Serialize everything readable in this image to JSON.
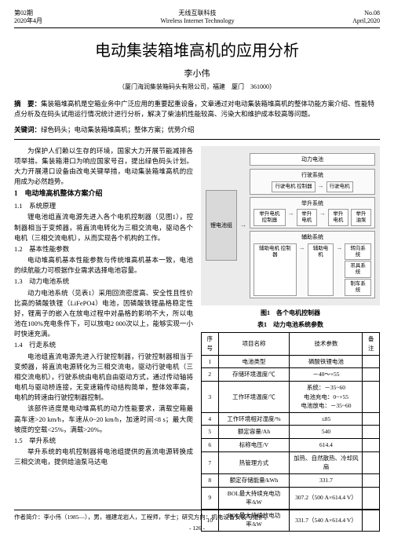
{
  "header": {
    "issue": "第02期",
    "date": "2020年4月",
    "journal": "无线互联科技",
    "journal_en": "Wireless Internet Technology",
    "no": "No.08",
    "date_en": "April,2020"
  },
  "title": "电动集装箱堆高机的应用分析",
  "author": "李小伟",
  "affiliation": "（厦门海润集装箱码头有限公司，福建　厦门　361000）",
  "abstract_label": "摘　要：",
  "abstract": "集装箱堆高机是空箱业务中广泛应用的重要起重设备，文章通过对电动集装箱堆高机的整体功能方案介绍、性能特点分析及在码头试用运行情况统计进行分析，解决了柴油机性能较高、污染大和维护成本较高等问题。",
  "keywords_label": "关键词：",
  "keywords": "绿色码头；电动集装箱堆高机；整体方案；优势介绍",
  "intro": "为保护人们赖以生存的环境，国家大力开展节能减排各项举措。集装箱港口为响应国家号召，提出绿色码头计划。大力开展港口设备由改电关键举措，电动集装箱堆高机的应用成为必然趋势。",
  "s1": "1　电动堆高机整体方案介绍",
  "s11": "1.1　系统原理",
  "p11": "锂电池组直流电源先进入各个电机控制器（见图1），控制器相当于变频器，将直流电转化为三相交流电，驱动各个电机（三相交流电机），从而实现各个机构的工作。",
  "s12": "1.2　基本性能参数",
  "p12": "电动堆高机基本性能参数与传统堆高机基本一致，电池的续航能力可根据作业需求选择电池容量。",
  "s13": "1.3　动力电池系统",
  "p13a": "动力电池系统（见表1）采用回流密度高、安全性且性价比高的磷酸铁锂（LiFePO4）电池，因磷酸铁锂晶格稳定性好，锂离子的嵌入在放电过程中对晶格的影响不大，所以电池在100%充电条件下，可以放电2 000次以上，能够实现一小时快速充满。",
  "s14": "1.4　行走系统",
  "p14": "电池组直流电源先进入行驶控制器，行驶控制器相当于变频器，将直流电源转化为三相交流电，驱动行驶电机（三相交流电机），行驶系统由电机自由驱动方式，通过传动轴将电机与驱动桥连接，无变速箱传动结构简单，整体效率高，电机的转速由行驶控制器控制。",
  "p14b": "该部件适度是电动堆高机的动力性能要求，满载空箱最高车速>20 km/h，车速从0~20 km/h，加速时间<8 s；最大爬坡度的空载<25%，满载>20%。",
  "s15": "1.5　举升系统",
  "p15": "举升系统的电机控制器将电池组提供的直流电源转换成三相交流电，提供给油泵马达电",
  "diagram": {
    "source": "锂电池组",
    "battery": "动力电池",
    "sys1": {
      "title": "行驶系统",
      "ctrl": "行驶电机\n控制器",
      "motor": "行驶电机"
    },
    "sys2": {
      "title": "举升系统",
      "ctrl": "举升电机\n控制器",
      "motor": "举升电机",
      "extra1": "举升电机",
      "extra2": "举升油泵"
    },
    "sys3": {
      "title": "辅助系统",
      "ctrl": "辅助电机\n控制器",
      "motor": "辅助电机",
      "extra1": "转向系统",
      "extra2": "吊具系统",
      "extra3": "制车系统"
    }
  },
  "fig1_caption": "图1　各个电机控制器",
  "tab1_caption": "表1　动力电池系统参数",
  "table": {
    "headers": [
      "序号",
      "项目名称",
      "技术参数",
      "备注"
    ],
    "rows": [
      [
        "1",
        "电池类型",
        "磷酸铁锂电池",
        ""
      ],
      [
        "2",
        "存储环境温度/℃",
        "－40～+55",
        ""
      ],
      [
        "3",
        "工作环境温度/℃",
        "系统：－35~60\n电池充电：0~+55\n电池放电：－35~60",
        ""
      ],
      [
        "4",
        "工作环境相对湿度/%",
        "≤85",
        ""
      ],
      [
        "5",
        "额定容量/Ah",
        "540",
        ""
      ],
      [
        "6",
        "标称电压/V",
        "614.4",
        ""
      ],
      [
        "7",
        "热管理方式",
        "加热、自然散热、冷却风扇",
        ""
      ],
      [
        "8",
        "额定存储能量/kWh",
        "331.7",
        ""
      ],
      [
        "9",
        "BOL最大持续充电功率/kW",
        "307.2（500 A×614.4 V）",
        ""
      ],
      [
        "10",
        "BOL最大持续放电功率/kW",
        "331.7（540 A×614.4 V）",
        ""
      ]
    ]
  },
  "footer_author": "作者简介：李小伟（1985—），男，福建龙岩人，工程师，学士；研究方向：机电设备安装与维护。",
  "page_number": "- 126 -"
}
